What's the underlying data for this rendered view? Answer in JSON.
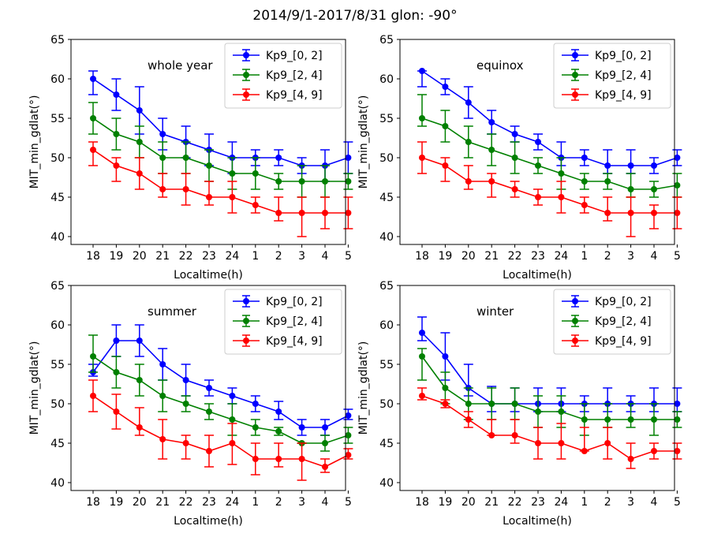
{
  "suptitle": "2014/9/1-2017/8/31  glon: -90°",
  "colors": {
    "Kp9_[0, 2]": "#0000ff",
    "Kp9_[2, 4]": "#008000",
    "Kp9_[4, 9]": "#ff0000"
  },
  "chart_data": [
    {
      "type": "line",
      "annotation": "whole year",
      "xlabel": "Localtime(h)",
      "ylabel": "MIT_min_gdlat(°)",
      "ylim": [
        39,
        65
      ],
      "yticks": [
        40,
        45,
        50,
        55,
        60,
        65
      ],
      "categories": [
        "18",
        "19",
        "20",
        "21",
        "22",
        "23",
        "24",
        "1",
        "2",
        "3",
        "4",
        "5"
      ],
      "legend": "top-right",
      "series": [
        {
          "name": "Kp9_[0, 2]",
          "values": [
            60,
            58,
            56,
            53,
            52,
            51,
            50,
            50,
            50,
            49,
            49,
            50
          ],
          "err_low": [
            58,
            56,
            53,
            51,
            50,
            49,
            48,
            49,
            49,
            48,
            47,
            48
          ],
          "err_high": [
            61,
            60,
            59,
            55,
            54,
            53,
            52,
            51,
            51,
            50,
            51,
            52
          ]
        },
        {
          "name": "Kp9_[2, 4]",
          "values": [
            55,
            53,
            52,
            50,
            50,
            49,
            48,
            48,
            47,
            47,
            47,
            47
          ],
          "err_low": [
            53,
            51,
            50,
            48,
            48,
            47,
            46,
            46,
            46,
            45,
            45,
            46
          ],
          "err_high": [
            57,
            55,
            54,
            52,
            52,
            51,
            50,
            50,
            48,
            49,
            49,
            48
          ]
        },
        {
          "name": "Kp9_[4, 9]",
          "values": [
            51,
            49,
            48,
            46,
            46,
            45,
            45,
            44,
            43,
            43,
            43,
            43
          ],
          "err_low": [
            49,
            47,
            46,
            45,
            44,
            44,
            43,
            43,
            42,
            40,
            41,
            41
          ],
          "err_high": [
            52,
            50,
            50,
            48,
            48,
            47,
            47,
            45,
            45,
            45,
            45,
            45
          ]
        }
      ]
    },
    {
      "type": "line",
      "annotation": "equinox",
      "xlabel": "Localtime(h)",
      "ylabel": "MIT_min_gdlat(°)",
      "ylim": [
        39,
        65
      ],
      "yticks": [
        40,
        45,
        50,
        55,
        60,
        65
      ],
      "categories": [
        "18",
        "19",
        "20",
        "21",
        "22",
        "23",
        "24",
        "1",
        "2",
        "3",
        "4",
        "5"
      ],
      "legend": "top-right",
      "series": [
        {
          "name": "Kp9_[0, 2]",
          "values": [
            61,
            59,
            57,
            54.5,
            53,
            52,
            50,
            50,
            49,
            49,
            49,
            50
          ],
          "err_low": [
            59,
            58,
            55,
            53,
            52,
            51,
            49,
            49,
            48,
            48,
            48,
            49
          ],
          "err_high": [
            61,
            60,
            59,
            56,
            54,
            53,
            52,
            51,
            51,
            51,
            50,
            51
          ]
        },
        {
          "name": "Kp9_[2, 4]",
          "values": [
            55,
            54,
            52,
            51,
            50,
            49,
            48,
            47,
            47,
            46,
            46,
            46.5
          ],
          "err_low": [
            54,
            52,
            50,
            49,
            48,
            48,
            46,
            46,
            46,
            45,
            45,
            45
          ],
          "err_high": [
            58,
            56,
            54,
            53,
            52,
            50,
            50,
            48,
            48,
            48,
            47,
            48
          ]
        },
        {
          "name": "Kp9_[4, 9]",
          "values": [
            50,
            49,
            47,
            47,
            46,
            45,
            45,
            44,
            43,
            43,
            43,
            43
          ],
          "err_low": [
            48,
            47,
            46,
            45,
            45,
            44,
            43,
            43,
            42,
            40,
            41,
            41
          ],
          "err_high": [
            52,
            50,
            49,
            48,
            47,
            46,
            47,
            45,
            45,
            45,
            44,
            45
          ]
        }
      ]
    },
    {
      "type": "line",
      "annotation": "summer",
      "xlabel": "Localtime(h)",
      "ylabel": "MIT_min_gdlat(°)",
      "ylim": [
        39,
        65
      ],
      "yticks": [
        40,
        45,
        50,
        55,
        60,
        65
      ],
      "categories": [
        "18",
        "19",
        "20",
        "21",
        "22",
        "23",
        "24",
        "1",
        "2",
        "3",
        "4",
        "5"
      ],
      "legend": "top-right",
      "series": [
        {
          "name": "Kp9_[0, 2]",
          "values": [
            54,
            58,
            58,
            55,
            53,
            52,
            51,
            50,
            49,
            47,
            47,
            48.5
          ],
          "err_low": [
            53.5,
            56,
            56,
            53,
            51,
            51,
            50,
            49,
            48,
            46,
            46,
            48
          ],
          "err_high": [
            55,
            60,
            60,
            57,
            55,
            53,
            52,
            51,
            50.3,
            48,
            48,
            49.3
          ]
        },
        {
          "name": "Kp9_[2, 4]",
          "values": [
            56,
            54,
            53,
            51,
            50,
            49,
            48,
            47,
            46.5,
            45,
            45,
            46
          ],
          "err_low": [
            54,
            52,
            51,
            49,
            49,
            48,
            46,
            46,
            46,
            45,
            44,
            45
          ],
          "err_high": [
            58.7,
            56,
            55,
            53,
            51,
            50,
            50,
            48,
            47,
            45,
            46,
            47
          ]
        },
        {
          "name": "Kp9_[4, 9]",
          "values": [
            51,
            49,
            47,
            45.5,
            45,
            44,
            45,
            43,
            43,
            43,
            42,
            43.5
          ],
          "err_low": [
            49,
            46.8,
            46,
            43,
            43,
            42,
            42.3,
            41,
            42,
            40.3,
            41.3,
            43
          ],
          "err_high": [
            53,
            51.2,
            49.5,
            48,
            46,
            46,
            47.5,
            45,
            45,
            45,
            43,
            44.3
          ]
        }
      ]
    },
    {
      "type": "line",
      "annotation": "winter",
      "xlabel": "Localtime(h)",
      "ylabel": "MIT_min_gdlat(°)",
      "ylim": [
        39,
        65
      ],
      "yticks": [
        40,
        45,
        50,
        55,
        60,
        65
      ],
      "categories": [
        "18",
        "19",
        "20",
        "21",
        "22",
        "23",
        "24",
        "1",
        "2",
        "3",
        "4",
        "5"
      ],
      "legend": "top-right",
      "series": [
        {
          "name": "Kp9_[0, 2]",
          "values": [
            59,
            56,
            52,
            50,
            50,
            50,
            50,
            50,
            50,
            50,
            50,
            50
          ],
          "err_low": [
            58,
            53,
            51,
            49,
            49,
            49,
            49,
            49,
            49,
            49,
            49,
            49
          ],
          "err_high": [
            61,
            59,
            55,
            52.2,
            52,
            52,
            52,
            51,
            52,
            51,
            52,
            52
          ]
        },
        {
          "name": "Kp9_[2, 4]",
          "values": [
            56,
            52,
            50,
            50,
            50,
            49,
            49,
            48,
            48,
            48,
            48,
            48
          ],
          "err_low": [
            53,
            50,
            48,
            48,
            48,
            47,
            47,
            46,
            47,
            47,
            46,
            47
          ],
          "err_high": [
            57,
            54,
            52,
            52,
            52,
            51,
            51,
            50,
            50,
            50,
            50,
            49
          ]
        },
        {
          "name": "Kp9_[4, 9]",
          "values": [
            51,
            50,
            48,
            46,
            46,
            45,
            45,
            44,
            45,
            43,
            44,
            44
          ],
          "err_low": [
            50.5,
            49.5,
            47,
            46,
            45,
            43,
            43,
            44,
            43,
            41.8,
            43,
            43
          ],
          "err_high": [
            52,
            50.5,
            49,
            48,
            48,
            47,
            47.5,
            47,
            47,
            45,
            45,
            45
          ]
        }
      ]
    }
  ]
}
